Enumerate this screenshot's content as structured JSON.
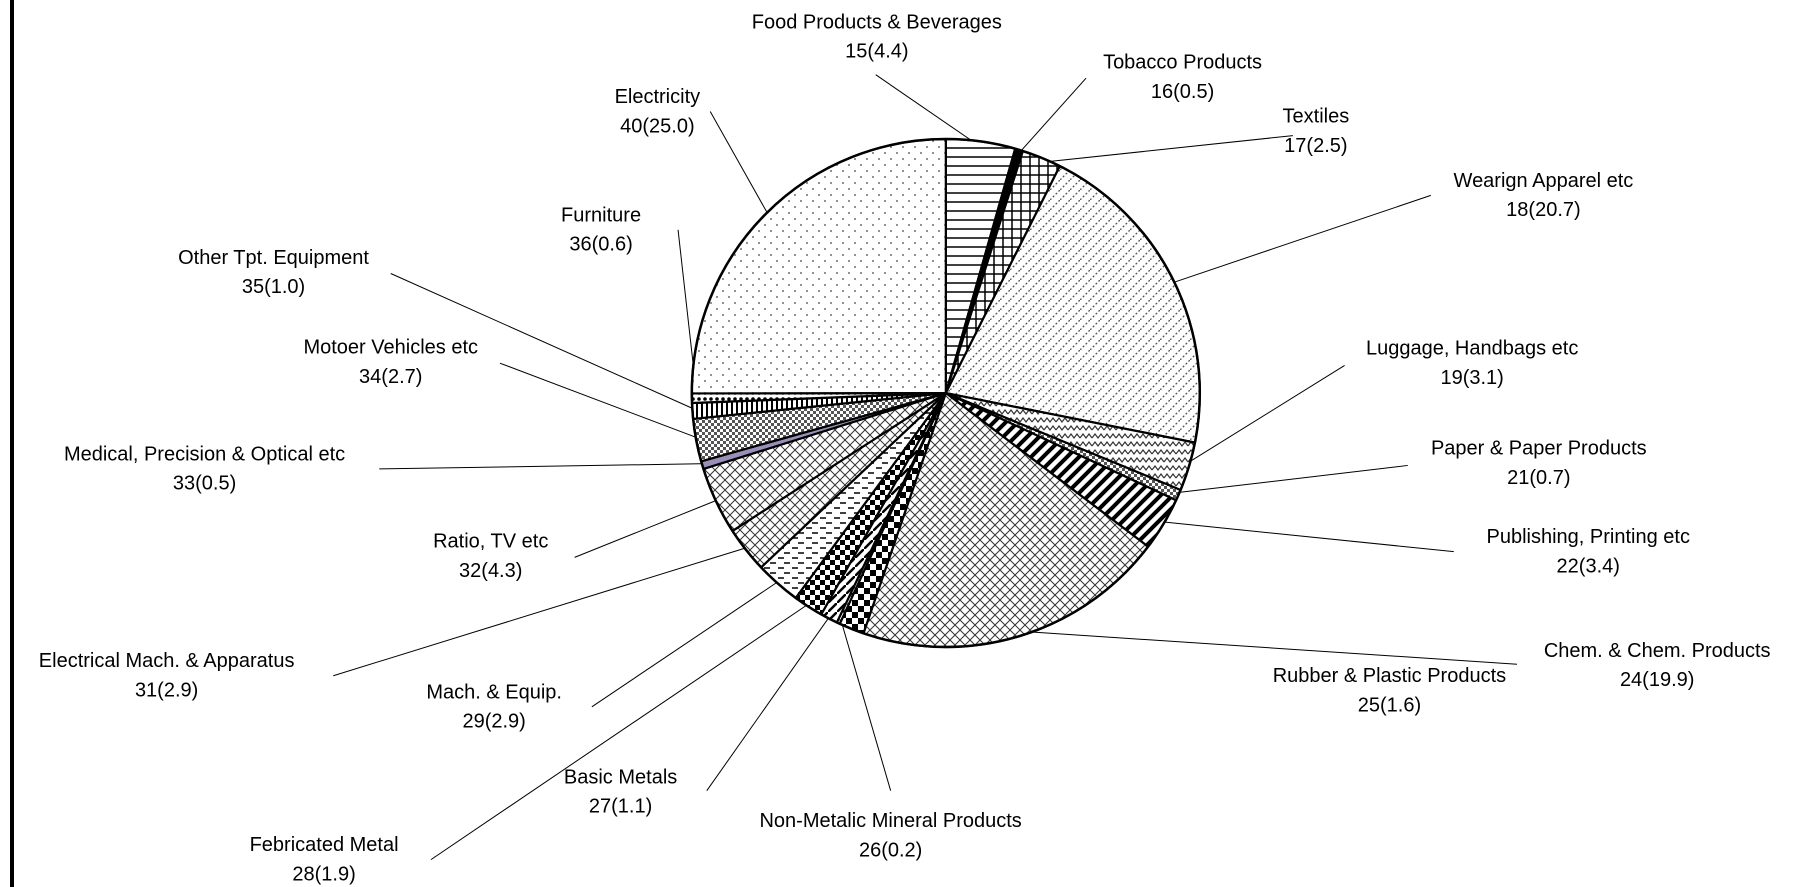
{
  "chart_data": {
    "type": "pie",
    "categories": [
      "Food Products & Beverages",
      "Tobacco Products",
      "Textiles",
      "Wearign Apparel etc",
      "Luggage, Handbags etc",
      "Paper & Paper Products",
      "Publishing, Printing etc",
      "Chem. & Chem. Products",
      "Rubber & Plastic Products",
      "Non-Metalic Mineral Products",
      "Basic Metals",
      "Febricated Metal",
      "Mach. & Equip.",
      "Electrical Mach. & Apparatus",
      "Ratio, TV etc",
      "Medical, Precision & Optical etc",
      "Motoer Vehicles etc",
      "Other Tpt. Equipment",
      "Furniture",
      "Electricity"
    ],
    "values": [
      4.4,
      0.5,
      2.5,
      20.7,
      3.1,
      0.7,
      3.4,
      19.9,
      1.6,
      0.2,
      1.1,
      1.9,
      2.9,
      2.9,
      4.3,
      0.5,
      2.7,
      1.0,
      0.6,
      25.0
    ],
    "value_labels": [
      "15(4.4)",
      "16(0.5)",
      "17(2.5)",
      "18(20.7)",
      "19(3.1)",
      "21(0.7)",
      "22(3.4)",
      "24(19.9)",
      "25(1.6)",
      "26(0.2)",
      "27(1.1)",
      "28(1.9)",
      "29(2.9)",
      "31(2.9)",
      "32(4.3)",
      "33(0.5)",
      "34(2.7)",
      "35(1.0)",
      "36(0.6)",
      "40(25.0)"
    ]
  }
}
